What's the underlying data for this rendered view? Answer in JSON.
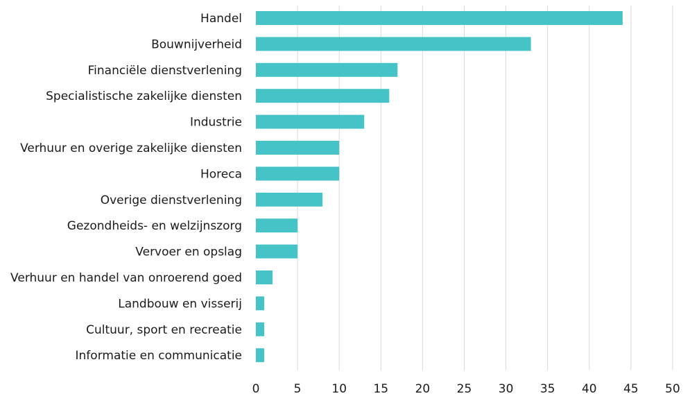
{
  "chart_data": {
    "type": "bar",
    "orientation": "horizontal",
    "title": "",
    "xlabel": "",
    "ylabel": "",
    "categories": [
      "Handel",
      "Bouwnijverheid",
      "Financiële dienstverlening",
      "Specialistische zakelijke diensten",
      "Industrie",
      "Verhuur en overige zakelijke diensten",
      "Horeca",
      "Overige dienstverlening",
      "Gezondheids- en welzijnszorg",
      "Vervoer en opslag",
      "Verhuur en handel van onroerend goed",
      "Landbouw en visserij",
      "Cultuur, sport en recreatie",
      "Informatie en communicatie"
    ],
    "values": [
      44,
      33,
      17,
      16,
      13,
      10,
      10,
      8,
      5,
      5,
      2,
      1,
      1,
      1
    ],
    "xlim": [
      0,
      50
    ],
    "xticks": [
      0,
      5,
      10,
      15,
      20,
      25,
      30,
      35,
      40,
      45,
      50
    ],
    "grid": true,
    "bar_color": "#45C3C7"
  }
}
